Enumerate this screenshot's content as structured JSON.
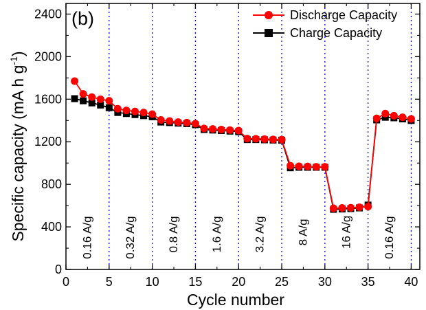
{
  "chart_data": {
    "type": "line",
    "panel_label": "(b)",
    "xlabel": "Cycle number",
    "ylabel_main": "Specific capacity (mA h g",
    "ylabel_sup": "-1",
    "ylabel_close": ")",
    "xlim": [
      0,
      41
    ],
    "ylim": [
      0,
      2500
    ],
    "x_ticks": [
      0,
      5,
      10,
      15,
      20,
      25,
      30,
      35,
      40
    ],
    "y_ticks": [
      0,
      400,
      800,
      1200,
      1600,
      2000,
      2400
    ],
    "grid": false,
    "legend_position": "top-right",
    "x": [
      1,
      2,
      3,
      4,
      5,
      6,
      7,
      8,
      9,
      10,
      11,
      12,
      13,
      14,
      15,
      16,
      17,
      18,
      19,
      20,
      21,
      22,
      23,
      24,
      25,
      26,
      27,
      28,
      29,
      30,
      31,
      32,
      33,
      34,
      35,
      36,
      37,
      38,
      39,
      40
    ],
    "series": [
      {
        "name": "Discharge Capacity",
        "color": "#ff0000",
        "marker": "circle",
        "values": [
          1770,
          1650,
          1620,
          1600,
          1585,
          1510,
          1495,
          1485,
          1475,
          1460,
          1405,
          1395,
          1385,
          1380,
          1370,
          1325,
          1320,
          1315,
          1310,
          1305,
          1230,
          1228,
          1225,
          1222,
          1220,
          975,
          970,
          968,
          965,
          965,
          575,
          578,
          580,
          585,
          590,
          1420,
          1465,
          1445,
          1430,
          1415
        ]
      },
      {
        "name": "Charge Capacity",
        "color": "#000000",
        "marker": "square",
        "values": [
          1605,
          1585,
          1565,
          1545,
          1520,
          1475,
          1465,
          1455,
          1445,
          1435,
          1385,
          1380,
          1375,
          1370,
          1360,
          1315,
          1310,
          1305,
          1300,
          1295,
          1220,
          1220,
          1218,
          1216,
          1215,
          955,
          960,
          960,
          960,
          960,
          565,
          568,
          572,
          578,
          605,
          1405,
          1430,
          1425,
          1415,
          1400
        ]
      }
    ],
    "rate_boundaries": [
      5,
      10,
      15,
      20,
      25,
      30,
      35,
      40
    ],
    "rate_labels": [
      {
        "text": "0.16 A/g",
        "x": 2.9,
        "y": 300
      },
      {
        "text": "0.32 A/g",
        "x": 7.9,
        "y": 300
      },
      {
        "text": "0.8 A/g",
        "x": 12.9,
        "y": 330
      },
      {
        "text": "1.6 A/g",
        "x": 17.9,
        "y": 330
      },
      {
        "text": "3.2 A/g",
        "x": 22.9,
        "y": 330
      },
      {
        "text": "8 A/g",
        "x": 27.9,
        "y": 350
      },
      {
        "text": "16 A/g",
        "x": 32.9,
        "y": 350
      },
      {
        "text": "0.16 A/g",
        "x": 37.9,
        "y": 300
      }
    ]
  }
}
